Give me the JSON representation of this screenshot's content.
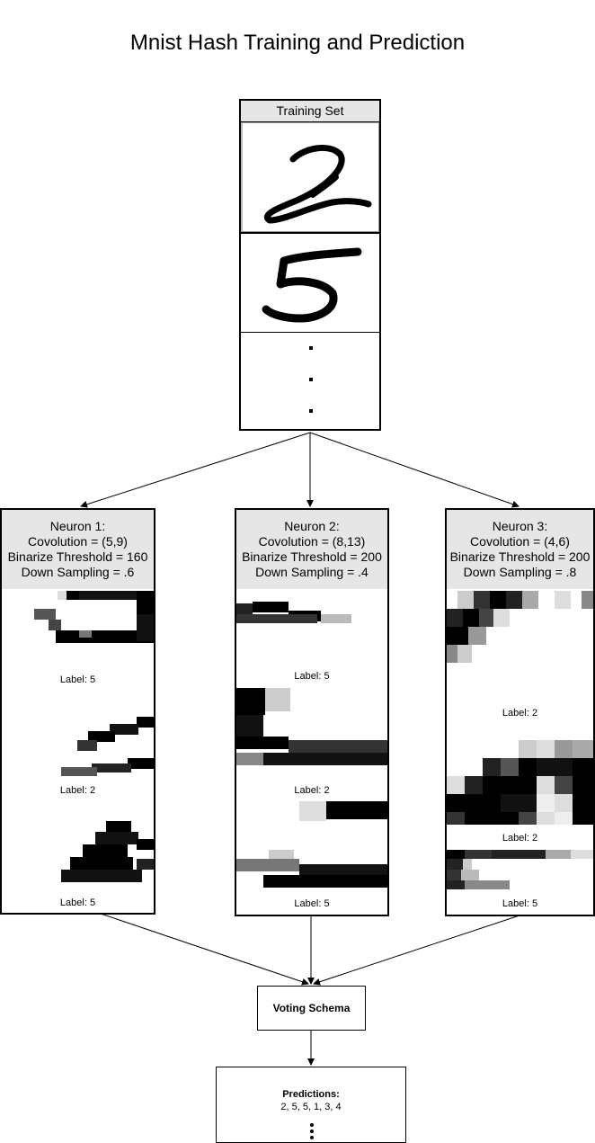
{
  "title": "Mnist Hash Training and Prediction",
  "training_set": {
    "header": "Training Set"
  },
  "neurons": [
    {
      "name": "Neuron 1:",
      "convolution": "Covolution = (5,9)",
      "threshold": "Binarize Threshold = 160",
      "downsampling": "Down Sampling = .6",
      "labels": [
        "Label: 5",
        "Label: 2",
        "Label: 5"
      ]
    },
    {
      "name": "Neuron 2:",
      "convolution": "Covolution = (8,13)",
      "threshold": "Binarize Threshold = 200",
      "downsampling": "Down Sampling = .4",
      "labels": [
        "Label: 5",
        "Label: 2",
        "Label: 5"
      ]
    },
    {
      "name": "Neuron 3:",
      "convolution": "Covolution = (4,6)",
      "threshold": "Binarize Threshold = 200",
      "downsampling": "Down Sampling = .8",
      "labels": [
        "Label: 2",
        "Label: 2",
        "Label: 5"
      ]
    }
  ],
  "voting": {
    "label": "Voting Schema"
  },
  "predictions": {
    "title": "Predictions:",
    "values": "2, 5, 5, 1, 3, 4"
  }
}
